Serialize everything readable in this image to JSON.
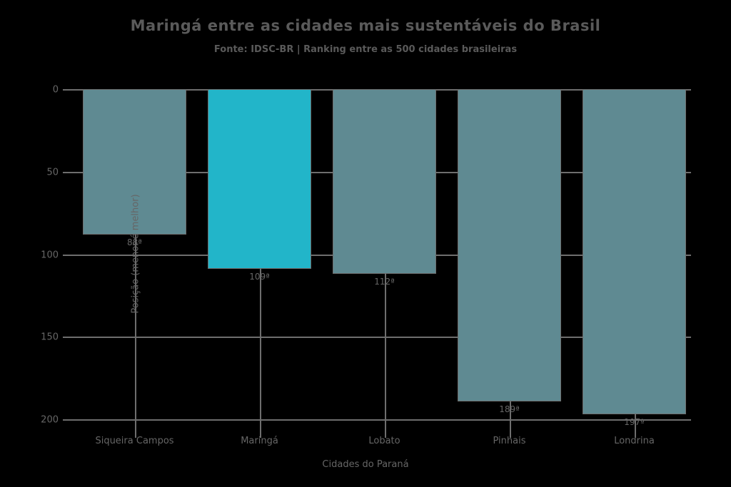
{
  "chart_data": {
    "type": "bar",
    "title": "Maringá entre as cidades mais sustentáveis do Brasil",
    "subtitle": "Fonte: IDSC-BR | Ranking entre as 500 cidades brasileiras",
    "xlabel": "Cidades do Paraná",
    "ylabel": "Posição (menor é melhor)",
    "categories": [
      "Siqueira Campos",
      "Maringá",
      "Lobato",
      "Pinhais",
      "Londrina"
    ],
    "values": [
      88,
      109,
      112,
      189,
      197
    ],
    "value_labels": [
      "88ª",
      "109ª",
      "112ª",
      "189ª",
      "197ª"
    ],
    "yticks": [
      0,
      50,
      100,
      150,
      200
    ],
    "ylim": [
      0,
      200
    ],
    "y_axis_inverted": true,
    "grid": true,
    "legend": "none",
    "highlight_index": 1,
    "colors": {
      "background": "#000000",
      "bar": "#5f8a92",
      "highlight_bar": "#22b5c9",
      "gridline": "#6e6e6e",
      "text": "#666666",
      "title_text": "#5a5a5a"
    }
  }
}
